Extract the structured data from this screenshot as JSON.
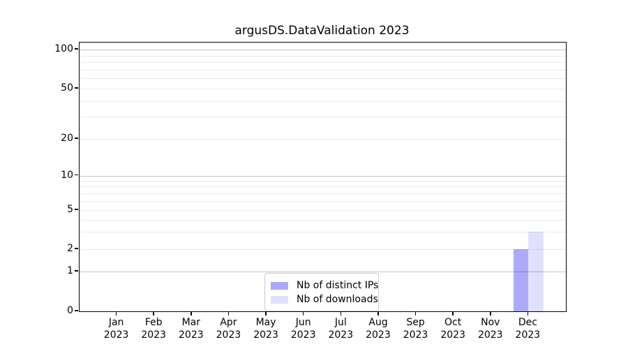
{
  "chart_data": {
    "type": "bar",
    "title": "argusDS.DataValidation 2023",
    "categories": [
      "Jan",
      "Feb",
      "Mar",
      "Apr",
      "May",
      "Jun",
      "Jul",
      "Aug",
      "Sep",
      "Oct",
      "Nov",
      "Dec"
    ],
    "category_year": "2023",
    "series": [
      {
        "name": "Nb of distinct IPs",
        "color": "rgba(15,15,240,0.35)",
        "solid_color": "#a9a9f7",
        "values": [
          0,
          0,
          0,
          0,
          0,
          0,
          0,
          0,
          0,
          0,
          0,
          2
        ]
      },
      {
        "name": "Nb of downloads",
        "color": "rgba(15,15,240,0.125)",
        "solid_color": "#ddddfa",
        "values": [
          0,
          0,
          0,
          0,
          0,
          0,
          0,
          0,
          0,
          0,
          0,
          3
        ]
      }
    ],
    "y_axis": {
      "scale": "symlog",
      "labeled_ticks": [
        0,
        1,
        2,
        5,
        10,
        20,
        50,
        100
      ],
      "major_gridlines": [
        1,
        10,
        100
      ],
      "minor_gridlines": [
        2,
        3,
        4,
        5,
        6,
        7,
        8,
        9,
        20,
        30,
        40,
        50,
        60,
        70,
        80,
        90
      ],
      "ylim": [
        0,
        113
      ]
    },
    "legend": {
      "position": "lower center",
      "entries": [
        "Nb of distinct IPs",
        "Nb of downloads"
      ]
    },
    "grid": "on (horizontal only)"
  },
  "colors": {
    "major_grid": "#c2c2c2",
    "minor_grid": "#e8e8e8",
    "spine": "#000000",
    "legend_border": "#cccccc",
    "text": "#000000",
    "background": "#ffffff"
  }
}
